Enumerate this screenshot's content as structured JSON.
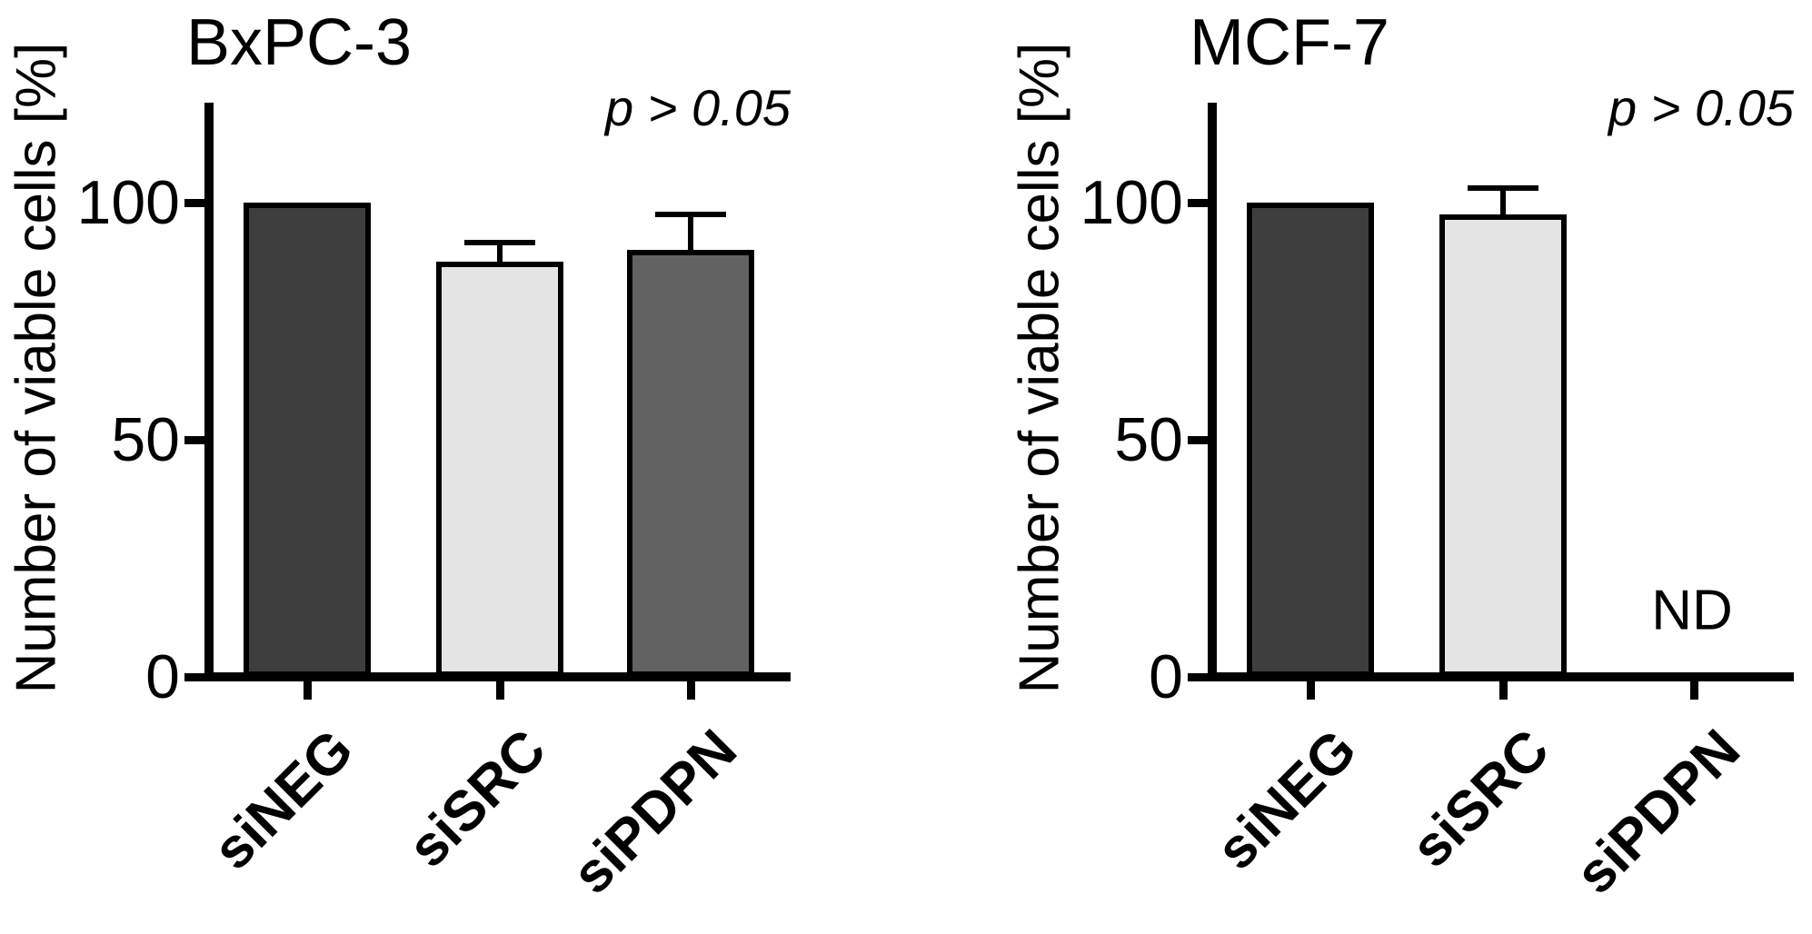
{
  "chart_data": [
    {
      "type": "bar",
      "title": "BxPC-3",
      "ylabel": "Number of viable cells [%]",
      "xlabel": "",
      "categories": [
        "siNEG",
        "siSRC",
        "siPDPN"
      ],
      "values": [
        100,
        87.5,
        90
      ],
      "errors_plus": [
        0,
        4,
        7.5
      ],
      "yticks": [
        0,
        50,
        100
      ],
      "ylim": [
        0,
        121
      ],
      "grid": false,
      "legend": "none",
      "bar_colors": [
        "#3e3e3e",
        "#e4e4e4",
        "#626262"
      ],
      "bar_edge_color": "#000000",
      "annotations": {
        "p_label": "p > 0.05",
        "nd_label": ""
      }
    },
    {
      "type": "bar",
      "title": "MCF-7",
      "ylabel": "Number of viable cells [%]",
      "xlabel": "",
      "categories": [
        "siNEG",
        "siSRC",
        "siPDPN"
      ],
      "values": [
        100,
        97.5,
        null
      ],
      "errors_plus": [
        0,
        5.5,
        null
      ],
      "yticks": [
        0,
        50,
        100
      ],
      "ylim": [
        0,
        121
      ],
      "grid": false,
      "legend": "none",
      "bar_colors": [
        "#3e3e3e",
        "#e4e4e4",
        null
      ],
      "bar_edge_color": "#000000",
      "annotations": {
        "p_label": "p > 0.05",
        "nd_label": "ND"
      }
    }
  ]
}
